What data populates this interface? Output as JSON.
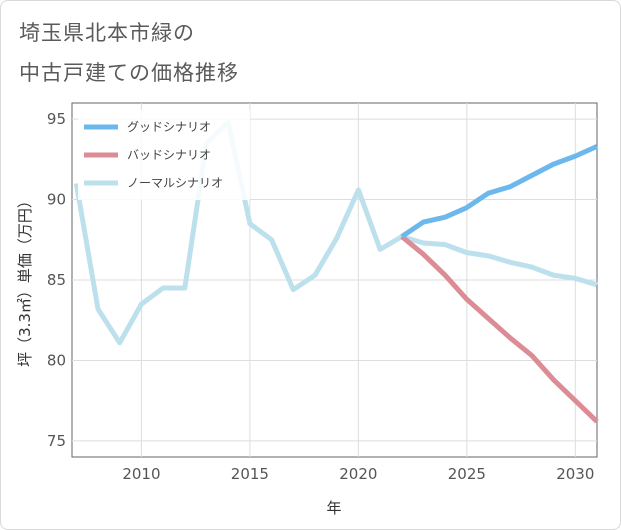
{
  "title_line1": "埼玉県北本市緑の",
  "title_line2": "中古戸建ての価格推移",
  "chart_data": {
    "type": "line",
    "xlabel": "年",
    "ylabel": "坪（3.3㎡）単価（万円）",
    "xlim": [
      2006.8,
      2031
    ],
    "ylim": [
      74,
      96
    ],
    "x_ticks": [
      2010,
      2015,
      2020,
      2025,
      2030
    ],
    "y_ticks": [
      75,
      80,
      85,
      90,
      95
    ],
    "grid": true,
    "legend_position": "top-left",
    "series": [
      {
        "name": "グッドシナリオ",
        "color": "#6cb8ec",
        "x": [
          2022,
          2023,
          2024,
          2025,
          2026,
          2027,
          2028,
          2029,
          2030,
          2031
        ],
        "y": [
          87.7,
          88.6,
          88.9,
          89.5,
          90.4,
          90.8,
          91.5,
          92.2,
          92.7,
          93.3
        ]
      },
      {
        "name": "バッドシナリオ",
        "color": "#dc8c94",
        "x": [
          2022,
          2023,
          2024,
          2025,
          2026,
          2027,
          2028,
          2029,
          2030,
          2031
        ],
        "y": [
          87.7,
          86.6,
          85.3,
          83.8,
          82.6,
          81.4,
          80.3,
          78.8,
          77.5,
          76.2
        ]
      },
      {
        "name": "ノーマルシナリオ",
        "color": "#bde0ed",
        "x": [
          2007,
          2008,
          2009,
          2010,
          2011,
          2012,
          2013,
          2014,
          2015,
          2016,
          2017,
          2018,
          2019,
          2020,
          2021,
          2022,
          2023,
          2024,
          2025,
          2026,
          2027,
          2028,
          2029,
          2030,
          2031
        ],
        "y": [
          91.0,
          83.2,
          81.1,
          83.5,
          84.5,
          84.5,
          93.5,
          94.8,
          88.5,
          87.5,
          84.4,
          85.3,
          87.6,
          90.6,
          86.9,
          87.7,
          87.3,
          87.2,
          86.7,
          86.5,
          86.1,
          85.8,
          85.3,
          85.1,
          84.7
        ]
      }
    ]
  }
}
